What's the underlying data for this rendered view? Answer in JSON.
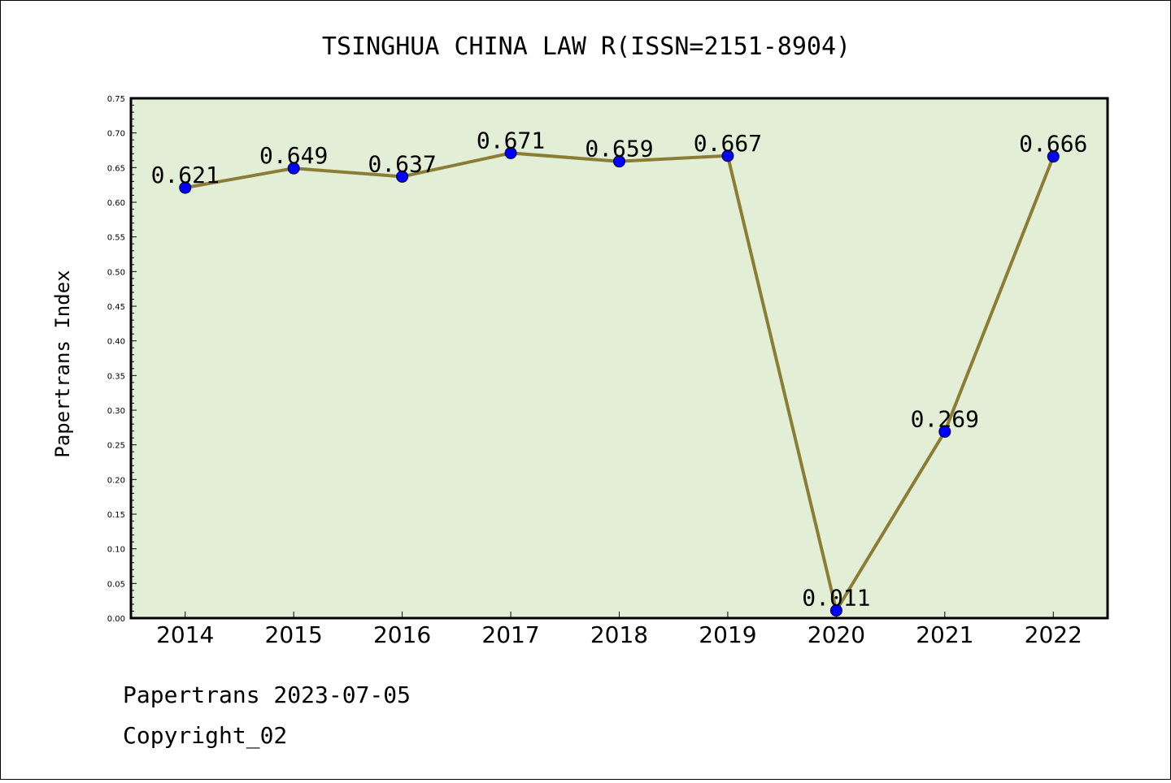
{
  "chart_data": {
    "type": "line",
    "title": "TSINGHUA CHINA LAW R(ISSN=2151-8904)",
    "xlabel": "",
    "ylabel": "Papertrans Index",
    "categories": [
      "2014",
      "2015",
      "2016",
      "2017",
      "2018",
      "2019",
      "2020",
      "2021",
      "2022"
    ],
    "series": [
      {
        "values": [
          0.621,
          0.649,
          0.637,
          0.671,
          0.659,
          0.667,
          0.011,
          0.269,
          0.666
        ],
        "labels": [
          "0.621",
          "0.649",
          "0.637",
          "0.671",
          "0.659",
          "0.667",
          "0.011",
          "0.269",
          "0.666"
        ]
      }
    ],
    "ylim": [
      0,
      0.75
    ],
    "yticks": [
      "0.00",
      "0.05",
      "0.10",
      "0.15",
      "0.20",
      "0.25",
      "0.30",
      "0.35",
      "0.40",
      "0.45",
      "0.50",
      "0.55",
      "0.60",
      "0.65",
      "0.70",
      "0.75"
    ],
    "grid": false,
    "colors": {
      "plot_background": "#e2efd6",
      "line": "#8b7d36",
      "marker": "#0000ff"
    }
  },
  "footer": {
    "line1": "Papertrans 2023-07-05",
    "line2": "Copyright_02"
  }
}
